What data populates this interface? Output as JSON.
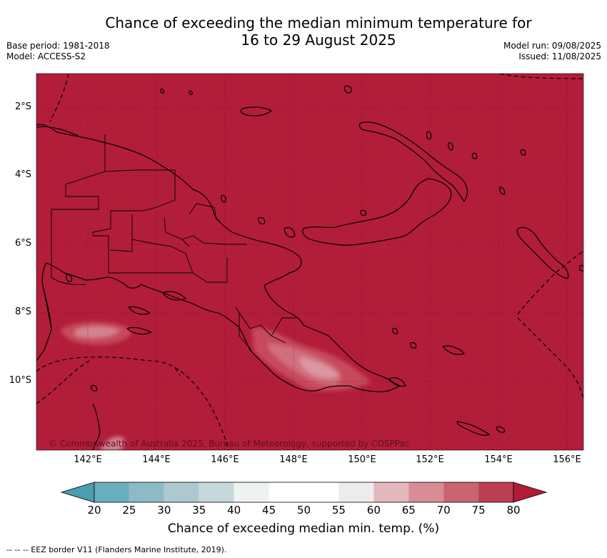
{
  "title_line1": "Chance of exceeding the median minimum temperature for",
  "title_line2": "16 to 29 August 2025",
  "left_meta": {
    "base_period": "Base period: 1981-2018",
    "model": "Model: ACCESS-S2"
  },
  "right_meta": {
    "model_run": "Model run: 09/08/2025",
    "issued": "Issued: 11/08/2025"
  },
  "copyright": "© Commonwealth of Australia 2025, Bureau of Meteorology, supported by COSPPac",
  "lat_labels": [
    "2°S",
    "4°S",
    "6°S",
    "8°S",
    "10°S"
  ],
  "lon_labels": [
    "142°E",
    "144°E",
    "146°E",
    "148°E",
    "150°E",
    "152°E",
    "154°E",
    "156°E"
  ],
  "colorbar": {
    "ticks": [
      "20",
      "25",
      "30",
      "35",
      "40",
      "45",
      "50",
      "55",
      "60",
      "65",
      "70",
      "75",
      "80"
    ],
    "colors": [
      "#6aafbd",
      "#8dbbc5",
      "#abc9cf",
      "#c7d8dc",
      "#eef2f3",
      "#ffffff",
      "#ffffff",
      "#ececec",
      "#e2b8bd",
      "#d78c96",
      "#c96470",
      "#bb3f51"
    ],
    "under_color": "#4a9eaf",
    "over_color": "#b01c38",
    "label": "Chance of exceeding median min. temp. (%)"
  },
  "map_fill_color": "#b21d3a",
  "footer": "--  --  -- EEZ border V11 (Flanders Marine Institute, 2019)."
}
